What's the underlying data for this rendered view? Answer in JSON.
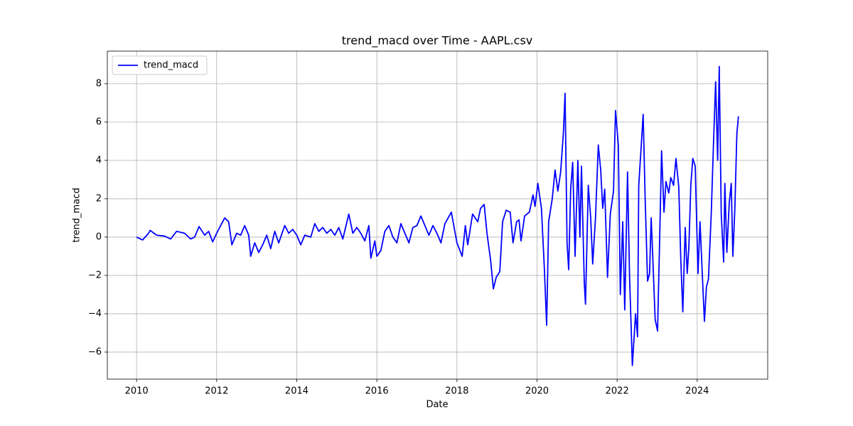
{
  "chart_data": {
    "type": "line",
    "title": "trend_macd over Time - AAPL.csv",
    "x_label": "Date",
    "y_label": "trend_macd",
    "x": [
      2010.0,
      2010.15,
      2010.3,
      2010.34,
      2010.5,
      2010.7,
      2010.85,
      2011.0,
      2011.2,
      2011.35,
      2011.45,
      2011.56,
      2011.7,
      2011.8,
      2011.9,
      2012.0,
      2012.1,
      2012.2,
      2012.3,
      2012.38,
      2012.5,
      2012.6,
      2012.7,
      2012.8,
      2012.85,
      2012.95,
      2013.05,
      2013.15,
      2013.25,
      2013.35,
      2013.45,
      2013.55,
      2013.7,
      2013.8,
      2013.9,
      2014.0,
      2014.1,
      2014.2,
      2014.35,
      2014.45,
      2014.55,
      2014.65,
      2014.75,
      2014.85,
      2014.95,
      2015.05,
      2015.15,
      2015.3,
      2015.4,
      2015.5,
      2015.6,
      2015.7,
      2015.8,
      2015.85,
      2015.95,
      2016.0,
      2016.1,
      2016.2,
      2016.3,
      2016.4,
      2016.5,
      2016.6,
      2016.7,
      2016.8,
      2016.9,
      2017.0,
      2017.1,
      2017.2,
      2017.3,
      2017.4,
      2017.5,
      2017.6,
      2017.7,
      2017.86,
      2018.0,
      2018.13,
      2018.21,
      2018.27,
      2018.39,
      2018.52,
      2018.59,
      2018.68,
      2018.75,
      2018.84,
      2018.91,
      2018.98,
      2019.07,
      2019.14,
      2019.23,
      2019.33,
      2019.4,
      2019.49,
      2019.55,
      2019.6,
      2019.69,
      2019.81,
      2019.9,
      2019.95,
      2020.02,
      2020.11,
      2020.18,
      2020.24,
      2020.29,
      2020.38,
      2020.45,
      2020.52,
      2020.59,
      2020.66,
      2020.7,
      2020.75,
      2020.79,
      2020.84,
      2020.89,
      2020.95,
      2021.02,
      2021.07,
      2021.11,
      2021.18,
      2021.21,
      2021.28,
      2021.34,
      2021.39,
      2021.46,
      2021.53,
      2021.59,
      2021.64,
      2021.69,
      2021.76,
      2021.83,
      2021.91,
      2021.96,
      2022.03,
      2022.08,
      2022.14,
      2022.19,
      2022.26,
      2022.31,
      2022.38,
      2022.46,
      2022.51,
      2022.54,
      2022.6,
      2022.65,
      2022.7,
      2022.76,
      2022.81,
      2022.85,
      2022.88,
      2022.95,
      2023.01,
      2023.08,
      2023.11,
      2023.17,
      2023.22,
      2023.29,
      2023.34,
      2023.41,
      2023.47,
      2023.54,
      2023.59,
      2023.64,
      2023.7,
      2023.75,
      2023.79,
      2023.84,
      2023.89,
      2023.95,
      2024.02,
      2024.07,
      2024.12,
      2024.18,
      2024.23,
      2024.28,
      2024.35,
      2024.41,
      2024.46,
      2024.51,
      2024.55,
      2024.6,
      2024.66,
      2024.69,
      2024.74,
      2024.8,
      2024.85,
      2024.89,
      2024.94,
      2024.99,
      2025.03
    ],
    "series": [
      {
        "name": "trend_macd",
        "color": "#0000ff",
        "values": [
          0,
          -0.15,
          0.2,
          0.35,
          0.1,
          0.05,
          -0.1,
          0.3,
          0.2,
          -0.1,
          0.0,
          0.55,
          0.1,
          0.3,
          -0.25,
          0.2,
          0.6,
          1.0,
          0.8,
          -0.4,
          0.2,
          0.1,
          0.6,
          0.1,
          -1.0,
          -0.3,
          -0.8,
          -0.4,
          0.1,
          -0.6,
          0.3,
          -0.3,
          0.6,
          0.2,
          0.4,
          0.1,
          -0.4,
          0.1,
          0.0,
          0.7,
          0.3,
          0.5,
          0.2,
          0.4,
          0.1,
          0.5,
          -0.1,
          1.2,
          0.2,
          0.5,
          0.2,
          -0.2,
          0.6,
          -1.1,
          -0.2,
          -1.0,
          -0.7,
          0.3,
          0.6,
          0.0,
          -0.3,
          0.7,
          0.2,
          -0.3,
          0.5,
          0.6,
          1.1,
          0.6,
          0.1,
          0.6,
          0.2,
          -0.3,
          0.7,
          1.3,
          -0.3,
          -1.0,
          0.6,
          -0.4,
          1.2,
          0.8,
          1.5,
          1.7,
          0.2,
          -1.2,
          -2.7,
          -2.1,
          -1.8,
          0.8,
          1.4,
          1.3,
          -0.3,
          0.8,
          0.9,
          -0.2,
          1.1,
          1.3,
          2.2,
          1.6,
          2.8,
          1.5,
          -1.5,
          -4.6,
          0.8,
          2.0,
          3.5,
          2.4,
          3.4,
          5.5,
          7.5,
          -0.3,
          -1.7,
          2.5,
          3.9,
          -1.0,
          4.0,
          0.0,
          3.7,
          -2.4,
          -3.5,
          2.7,
          1.0,
          -1.4,
          1.0,
          4.8,
          3.5,
          1.5,
          2.5,
          -2.1,
          1.2,
          2.4,
          6.6,
          4.8,
          -3.0,
          0.8,
          -3.8,
          3.4,
          -2.0,
          -6.7,
          -4.0,
          -5.2,
          2.7,
          4.7,
          6.4,
          2.0,
          -2.3,
          -1.9,
          1.0,
          -0.5,
          -4.3,
          -4.9,
          1.6,
          4.5,
          1.3,
          2.9,
          2.3,
          3.1,
          2.7,
          4.1,
          2.6,
          -1.2,
          -3.9,
          0.5,
          -1.9,
          -0.6,
          2.7,
          4.1,
          3.7,
          -1.9,
          0.8,
          -1.6,
          -4.4,
          -2.6,
          -2.2,
          1.2,
          5.1,
          8.1,
          4.0,
          8.9,
          1.2,
          -1.3,
          2.8,
          -0.8,
          1.8,
          2.8,
          -1.0,
          1.5,
          5.4,
          6.3
        ]
      }
    ],
    "xlim": [
      2009.27,
      2025.76
    ],
    "ylim": [
      -7.41,
      9.7
    ],
    "xticks": [
      2010,
      2012,
      2014,
      2016,
      2018,
      2020,
      2022,
      2024
    ],
    "yticks": [
      {
        "value": -6,
        "label": "−6"
      },
      {
        "value": -4,
        "label": "−4"
      },
      {
        "value": -2,
        "label": "−2"
      },
      0,
      2,
      4,
      6,
      8
    ],
    "grid": true,
    "legend": "upper left"
  }
}
